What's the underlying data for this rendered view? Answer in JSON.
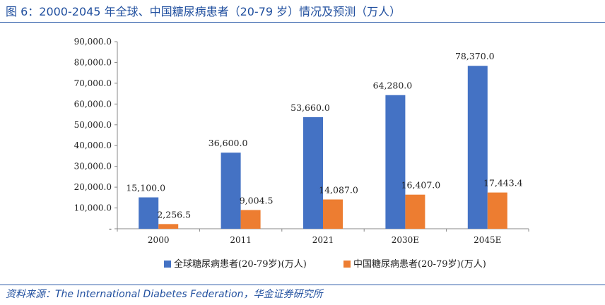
{
  "figure": {
    "title": "图 6：2000-2045 年全球、中国糖尿病患者（20-79 岁）情况及预测（万人）",
    "source": "资料来源：The International Diabetes Federation，华金证券研究所"
  },
  "chart_data": {
    "type": "bar",
    "categories": [
      "2000",
      "2011",
      "2021",
      "2030E",
      "2045E"
    ],
    "series": [
      {
        "name": "全球糖尿病患者(20-79岁)(万人)",
        "color": "#4472c4",
        "values": [
          15100.0,
          36600.0,
          53660.0,
          64280.0,
          78370.0
        ],
        "labels": [
          "15,100.0",
          "36,600.0",
          "53,660.0",
          "64,280.0",
          "78,370.0"
        ]
      },
      {
        "name": "中国糖尿病患者(20-79岁)(万人)",
        "color": "#ed7d31",
        "values": [
          2256.5,
          9004.5,
          14087.0,
          16407.0,
          17443.4
        ],
        "labels": [
          "2,256.5",
          "9,004.5",
          "14,087.0",
          "16,407.0",
          "17,443.4"
        ]
      }
    ],
    "ylim": [
      0,
      90000
    ],
    "yticks": [
      0,
      10000,
      20000,
      30000,
      40000,
      50000,
      60000,
      70000,
      80000,
      90000
    ],
    "ytick_labels": [
      "-",
      "10,000.0",
      "20,000.0",
      "30,000.0",
      "40,000.0",
      "50,000.0",
      "60,000.0",
      "70,000.0",
      "80,000.0",
      "90,000.0"
    ],
    "xlabel": "",
    "ylabel": "",
    "grid": false,
    "legend_position": "bottom"
  }
}
